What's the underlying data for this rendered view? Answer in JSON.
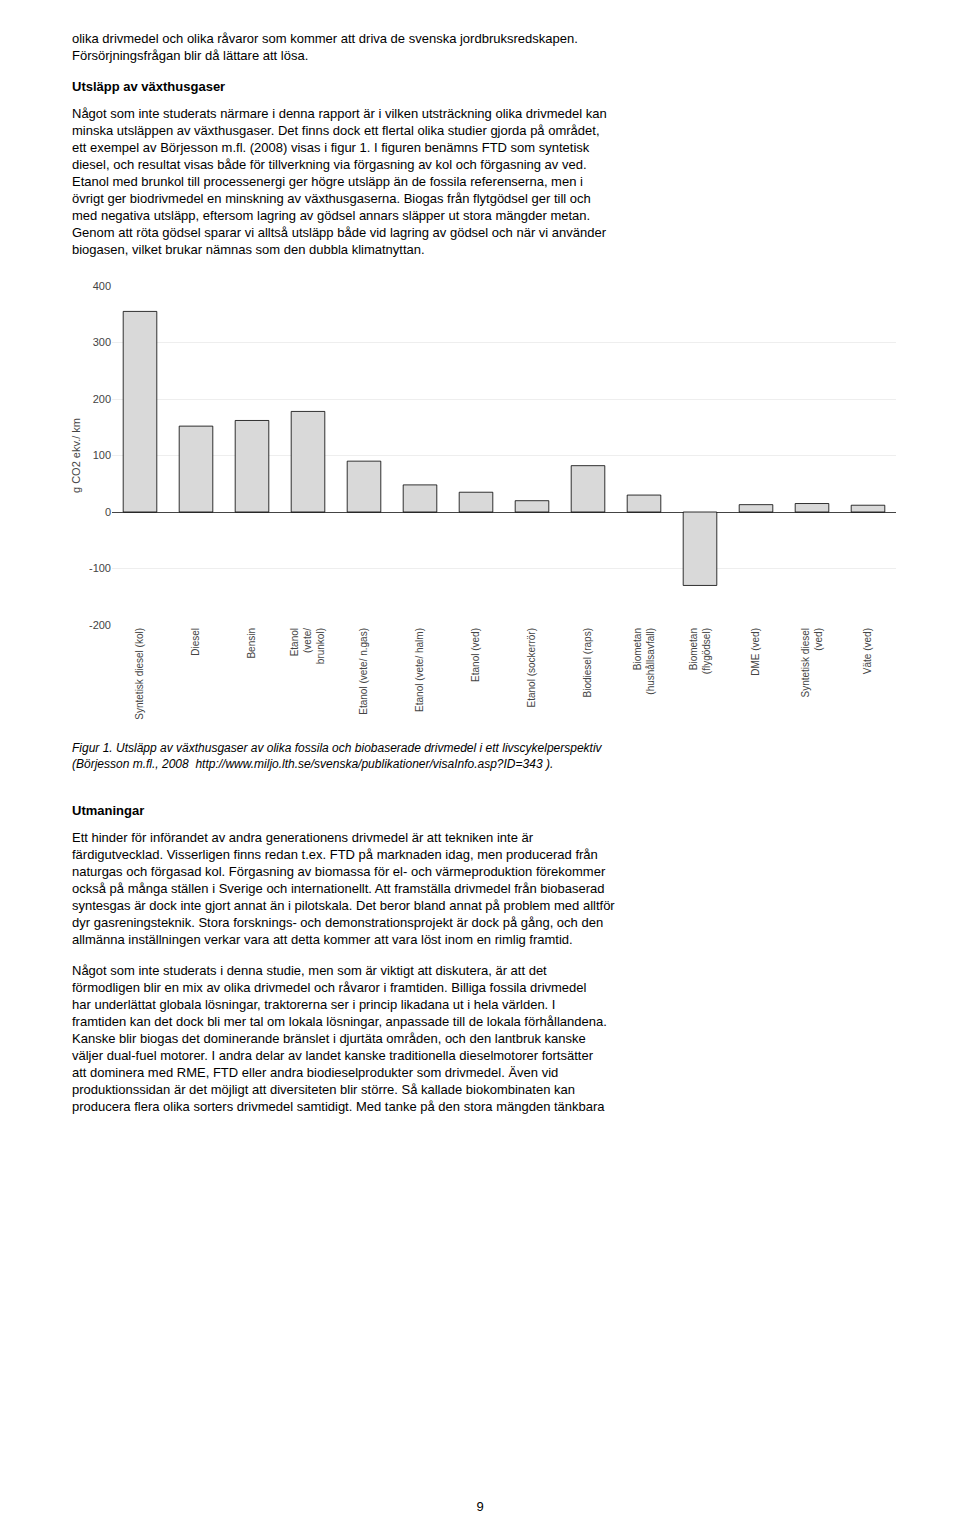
{
  "chart_data": {
    "type": "bar",
    "categories": [
      "Syntetisk diesel (kol)",
      "Diesel",
      "Bensin",
      "Etanol\n(vete/\nbrunkol)",
      "Etanol (vete/ n.gas)",
      "Etanol (vete/ halm)",
      "Etanol (ved)",
      "Etanol (sockerrör)",
      "Biodiesel (raps)",
      "Biometan\n(hushållsavfall)",
      "Biometan\n(flygödsel)",
      "DME (ved)",
      "Syntetisk diesel\n(ved)",
      "Väte (ved)"
    ],
    "values": [
      355,
      152,
      162,
      178,
      90,
      48,
      35,
      20,
      82,
      30,
      -130,
      13,
      15,
      12
    ],
    "color": "#d9d9d9",
    "ylabel": "g CO2 ekv./ km",
    "ylim": [
      -200,
      400
    ],
    "yticks": [
      -200,
      -100,
      0,
      100,
      200,
      300,
      400
    ],
    "grid": true,
    "annotations": [
      "olika drivmedel och olika råvaror som kommer att driva de svenska jordbruksredskapen.",
      "Försörjningsfrågan blir då lättare att lösa.",
      "Utsläpp av växthusgaser",
      "Något som inte studerats närmare i denna rapport är i vilken utsträckning olika drivmedel kan\nminska utsläppen av växthusgaser. Det finns dock ett flertal olika studier gjorda på området,\nett exempel av Börjesson m.fl. (2008) visas i figur 1. I figuren benämns FTD som syntetisk\ndiesel, och resultat visas både för tillverkning via förgasning av kol och förgasning av ved.\nEtanol med brunkol till processenergi ger högre utsläpp än de fossila referenserna, men i\növrigt ger biodrivmedel en minskning av växthusgaserna. Biogas från flytgödsel ger till och\nmed negativa utsläpp, eftersom lagring av gödsel annars släpper ut stora mängder metan.\nGenom att röta gödsel sparar vi alltså utsläpp både vid lagring av gödsel och när vi använder\nbiogasen, vilket brukar nämnas som den dubbla klimatnyttan.",
      "Figur 1. Utsläpp av växthusgaser av olika fossila och biobaserade drivmedel i ett livscykelperspektiv\n(Börjesson m.fl., 2008  http://www.miljo.lth.se/svenska/publikationer/visaInfo.asp?ID=343 ).",
      "Utmaningar",
      "Ett hinder för införandet av andra generationens drivmedel är att tekniken inte är\nfärdigutvecklad. Visserligen finns redan t.ex. FTD på marknaden idag, men producerad från\nnaturgas och förgasad kol. Förgasning av biomassa för el- och värmeproduktion förekommer\nockså på många ställen i Sverige och internationellt. Att framställa drivmedel från biobaserad\nsyntesgas är dock inte gjort annat än i pilotskala. Det beror bland annat på problem med alltför\ndyr gasreningsteknik. Stora forsknings- och demonstrationsprojekt är dock på gång, och den\nallmänna inställningen verkar vara att detta kommer att vara löst inom en rimlig framtid.",
      "Något som inte studerats i denna studie, men som är viktigt att diskutera, är att det\nförmodligen blir en mix av olika drivmedel och råvaror i framtiden. Billiga fossila drivmedel\nhar underlättat globala lösningar, traktorerna ser i princip likadana ut i hela världen. I\nframtiden kan det dock bli mer tal om lokala lösningar, anpassade till de lokala förhållandena.\nKanske blir biogas det dominerande bränslet i djurtäta områden, och den lantbruk kanske\nväljer dual-fuel motorer. I andra delar av landet kanske traditionella dieselmotorer fortsätter\natt dominera med RME, FTD eller andra biodieselprodukter som drivmedel. Även vid\nproduktionssidan är det möjligt att diversiteten blir större. Så kallade biokombinaten kan\nproducera flera olika sorters drivmedel samtidigt. Med tanke på den stora mängden tänkbara",
      "9"
    ]
  }
}
